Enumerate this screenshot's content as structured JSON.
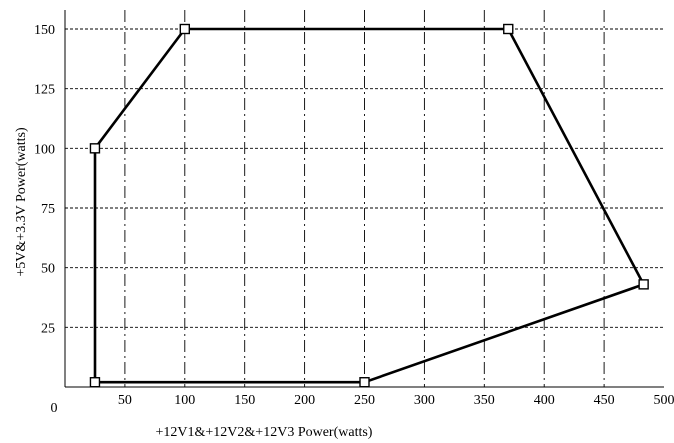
{
  "chart_data": {
    "type": "line",
    "title": "",
    "xlabel": "+12V1&+12V2&+12V3 Power(watts)",
    "ylabel": "+5V&+3.3V Power(watts)",
    "xlim": [
      0,
      500
    ],
    "ylim": [
      0,
      150
    ],
    "origin_label": "0",
    "x_ticks": [
      50,
      100,
      150,
      200,
      250,
      300,
      350,
      400,
      450,
      500
    ],
    "y_ticks": [
      25,
      50,
      75,
      100,
      125,
      150
    ],
    "grid": true,
    "legend": "none",
    "line_color": "#000000",
    "series": [
      {
        "closed": true,
        "marker": "square",
        "points": [
          {
            "x": 25,
            "y": 2
          },
          {
            "x": 25,
            "y": 100
          },
          {
            "x": 100,
            "y": 150
          },
          {
            "x": 370,
            "y": 150
          },
          {
            "x": 483,
            "y": 43
          },
          {
            "x": 250,
            "y": 2
          }
        ]
      }
    ]
  }
}
